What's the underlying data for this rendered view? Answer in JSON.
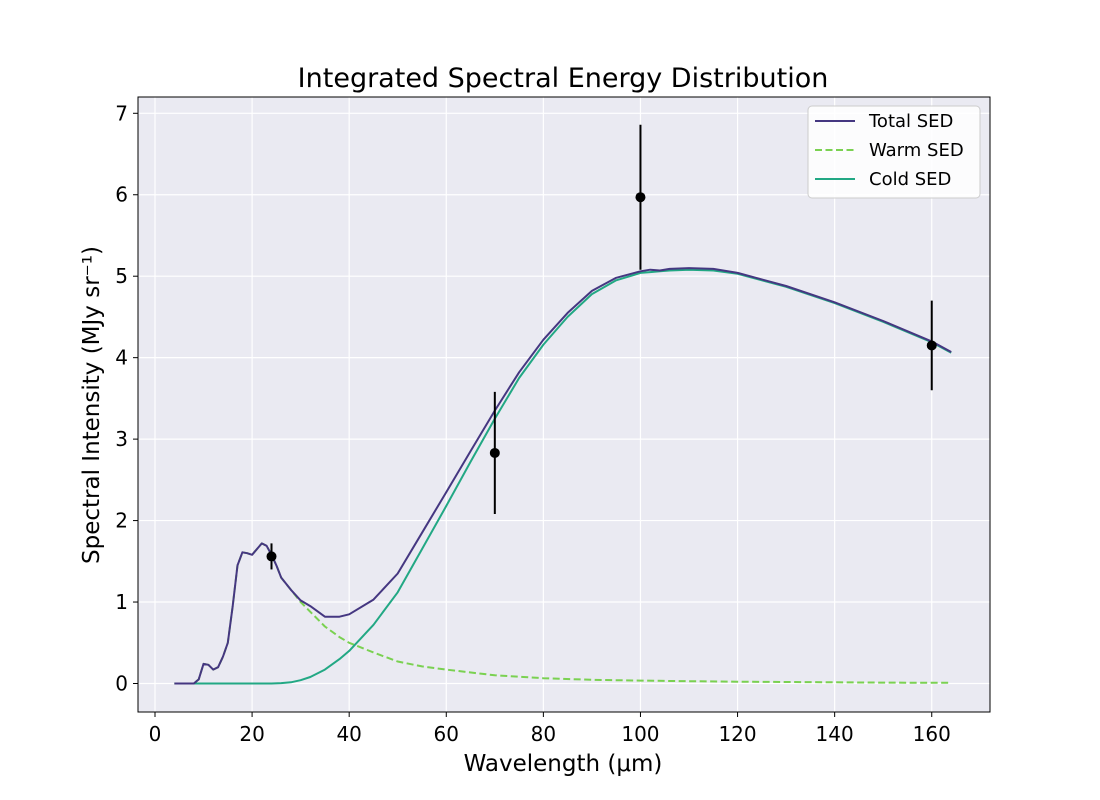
{
  "chart_data": {
    "type": "line",
    "title": "Integrated Spectral Energy Distribution",
    "xlabel": "Wavelength (μm)",
    "ylabel": "Spectral Intensity (MJy sr⁻¹)",
    "xlim": [
      -3.5,
      172
    ],
    "ylim": [
      -0.35,
      7.2
    ],
    "xticks": [
      0,
      20,
      40,
      60,
      80,
      100,
      120,
      140,
      160
    ],
    "yticks": [
      0,
      1,
      2,
      3,
      4,
      5,
      6,
      7
    ],
    "grid": true,
    "background": "#eaeaf2",
    "legend_position": "top-right",
    "series": [
      {
        "name": "Total SED",
        "color": "#453781",
        "style": "solid",
        "x": [
          4,
          8,
          9,
          10,
          11,
          12,
          13,
          14,
          15,
          16,
          17,
          18,
          19,
          20,
          21,
          22,
          23,
          24,
          25,
          26,
          28,
          30,
          32,
          35,
          38,
          40,
          45,
          50,
          55,
          60,
          65,
          70,
          75,
          80,
          85,
          90,
          95,
          100,
          102,
          104,
          106,
          110,
          115,
          120,
          130,
          140,
          150,
          160,
          164
        ],
        "y": [
          0,
          0,
          0.05,
          0.24,
          0.23,
          0.17,
          0.2,
          0.33,
          0.5,
          0.95,
          1.45,
          1.61,
          1.6,
          1.58,
          1.65,
          1.72,
          1.69,
          1.58,
          1.45,
          1.3,
          1.15,
          1.02,
          0.95,
          0.82,
          0.82,
          0.85,
          1.03,
          1.35,
          1.85,
          2.35,
          2.85,
          3.35,
          3.82,
          4.22,
          4.55,
          4.82,
          4.98,
          5.06,
          5.08,
          5.07,
          5.09,
          5.1,
          5.09,
          5.04,
          4.88,
          4.68,
          4.45,
          4.2,
          4.07
        ]
      },
      {
        "name": "Warm SED",
        "color": "#7ad151",
        "style": "dashed",
        "x": [
          4,
          8,
          9,
          10,
          11,
          12,
          13,
          14,
          15,
          16,
          17,
          18,
          19,
          20,
          21,
          22,
          23,
          24,
          25,
          26,
          28,
          30,
          32,
          35,
          38,
          40,
          45,
          50,
          55,
          60,
          70,
          80,
          90,
          100,
          110,
          120,
          130,
          140,
          150,
          160,
          164
        ],
        "y": [
          0,
          0,
          0.05,
          0.24,
          0.23,
          0.17,
          0.2,
          0.33,
          0.5,
          0.95,
          1.45,
          1.61,
          1.6,
          1.58,
          1.65,
          1.72,
          1.69,
          1.58,
          1.45,
          1.3,
          1.15,
          1.0,
          0.88,
          0.7,
          0.57,
          0.5,
          0.38,
          0.27,
          0.21,
          0.17,
          0.1,
          0.065,
          0.045,
          0.035,
          0.028,
          0.022,
          0.018,
          0.014,
          0.011,
          0.009,
          0.008
        ]
      },
      {
        "name": "Cold SED",
        "color": "#22a884",
        "style": "solid",
        "x": [
          4,
          20,
          24,
          26,
          28,
          30,
          32,
          35,
          38,
          40,
          45,
          50,
          55,
          60,
          65,
          70,
          75,
          80,
          85,
          90,
          95,
          100,
          102,
          104,
          106,
          110,
          115,
          120,
          130,
          140,
          150,
          160,
          164
        ],
        "y": [
          0,
          0,
          0,
          0.005,
          0.015,
          0.04,
          0.08,
          0.17,
          0.3,
          0.4,
          0.72,
          1.12,
          1.65,
          2.18,
          2.72,
          3.25,
          3.75,
          4.16,
          4.5,
          4.78,
          4.95,
          5.04,
          5.05,
          5.06,
          5.07,
          5.08,
          5.07,
          5.03,
          4.87,
          4.67,
          4.44,
          4.19,
          4.06
        ]
      }
    ],
    "observations": {
      "color": "#000000",
      "points": [
        {
          "x": 24,
          "y": 1.56,
          "yerr": 0.16
        },
        {
          "x": 70,
          "y": 2.83,
          "yerr": 0.75
        },
        {
          "x": 100,
          "y": 5.97,
          "yerr": 0.89
        },
        {
          "x": 160,
          "y": 4.15,
          "yerr": 0.55
        }
      ]
    }
  }
}
